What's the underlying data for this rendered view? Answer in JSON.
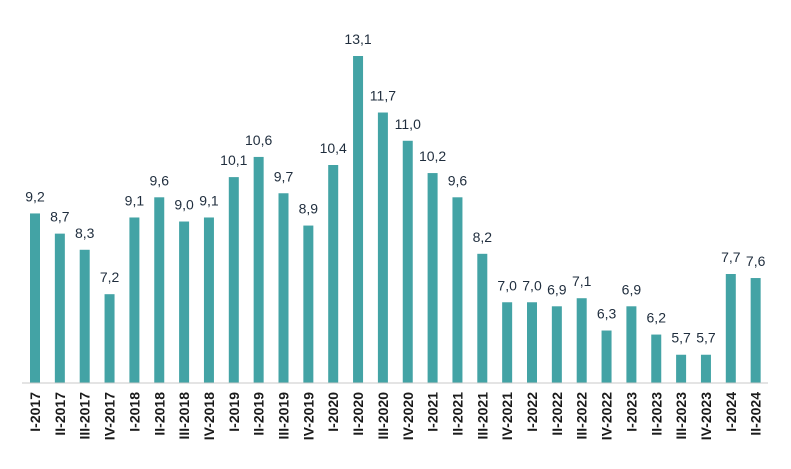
{
  "chart_data": {
    "type": "bar",
    "title": "",
    "xlabel": "",
    "ylabel": "",
    "ylim": [
      5.0,
      13.1
    ],
    "grid": false,
    "legend": "none",
    "bar_color": "#43a3a5",
    "categories": [
      "I-2017",
      "II-2017",
      "III-2017",
      "IV-2017",
      "I-2018",
      "II-2018",
      "III-2018",
      "IV-2018",
      "I-2019",
      "II-2019",
      "III-2019",
      "IV-2019",
      "I-2020",
      "II-2020",
      "III-2020",
      "IV-2020",
      "I-2021",
      "II-2021",
      "III-2021",
      "IV-2021",
      "I-2022",
      "II-2022",
      "III-2022",
      "IV-2022",
      "I-2023",
      "II-2023",
      "III-2023",
      "IV-2023",
      "I-2024",
      "II-2024"
    ],
    "values": [
      9.2,
      8.7,
      8.3,
      7.2,
      9.1,
      9.6,
      9.0,
      9.1,
      10.1,
      10.6,
      9.7,
      8.9,
      10.4,
      13.1,
      11.7,
      11.0,
      10.2,
      9.6,
      8.2,
      7.0,
      7.0,
      6.9,
      7.1,
      6.3,
      6.9,
      6.2,
      5.7,
      5.7,
      7.7,
      7.6
    ],
    "value_labels": [
      "9,2",
      "8,7",
      "8,3",
      "7,2",
      "9,1",
      "9,6",
      "9,0",
      "9,1",
      "10,1",
      "10,6",
      "9,7",
      "8,9",
      "10,4",
      "13,1",
      "11,7",
      "11,0",
      "10,2",
      "9,6",
      "8,2",
      "7,0",
      "7,0",
      "6,9",
      "7,1",
      "6,3",
      "6,9",
      "6,2",
      "5,7",
      "5,7",
      "7,7",
      "7,6"
    ]
  }
}
